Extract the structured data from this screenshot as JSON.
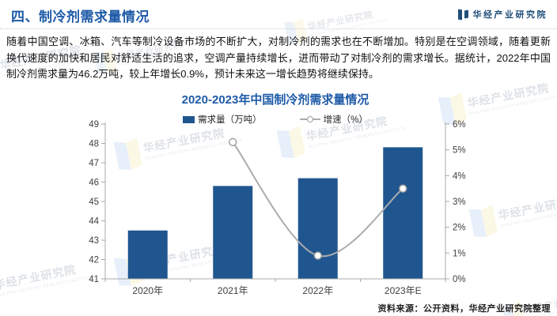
{
  "header": {
    "section_title": "四、制冷剂需求量情况",
    "brand_name": "华经产业研究院"
  },
  "intro_paragraph": "随着中国空调、冰箱、汽车等制冷设备市场的不断扩大，对制冷剂的需求也在不断增加。特别是在空调领域，随着更新换代速度的加快和居民对舒适生活的追求，空调产量持续增长，进而带动了对制冷剂的需求增长。据统计，2022年中国制冷剂需求量为46.2万吨，较上年增长0.9%，预计未来这一增长趋势将继续保持。",
  "chart_data": {
    "type": "bar",
    "title": "2020-2023年中国制冷剂需求量情况",
    "categories": [
      "2020年",
      "2021年",
      "2022年",
      "2023年E"
    ],
    "series": [
      {
        "name": "需求量（万吨）",
        "type": "bar",
        "axis": "left",
        "color": "#20568F",
        "values": [
          43.5,
          45.8,
          46.2,
          47.8
        ]
      },
      {
        "name": "增速（%）",
        "type": "line",
        "axis": "right",
        "color": "#ACACAC",
        "values": [
          null,
          5.3,
          0.9,
          3.5
        ]
      }
    ],
    "left_axis": {
      "min": 41,
      "max": 49,
      "step": 1,
      "suffix": ""
    },
    "right_axis": {
      "min": 0,
      "max": 6,
      "step": 1,
      "suffix": "%"
    },
    "grid": false,
    "legend_position": "top"
  },
  "source_note": "资料来源：公开资料，华经产业研究院整理",
  "watermark": {
    "text": "华经产业研究院",
    "subtext": "HUAJING INDUSTRY RESEARCH INSTITUTE"
  },
  "colors": {
    "accent_blue": "#1E5AA7",
    "bar_blue": "#20568F",
    "line_gray": "#ACACAC",
    "brand_navy": "#1F4E79",
    "axis_gray": "#A9A9A9"
  }
}
